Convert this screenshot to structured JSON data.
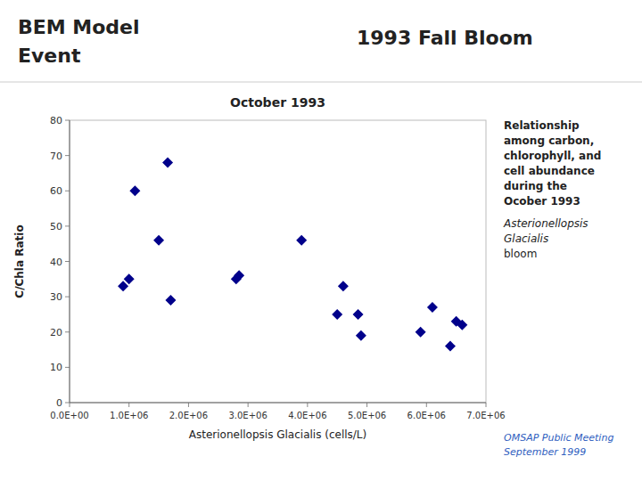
{
  "chart_data": {
    "type": "scatter",
    "title": "October 1993",
    "x_label": "Asterionellopsis Glacialis (cells/L)",
    "y_label": "C/Chla Ratio",
    "annotations": [
      "BEM Model",
      "Event",
      "1993 Fall Bloom",
      "Relationship\namong carbon,\nchlorophyll, and\ncell abundance\nduring the\nOcober 1993",
      "Asterionellopsis\nGlacialis",
      "bloom",
      "OMSAP Public Meeting\nSeptember 1999"
    ],
    "x": [
      900000,
      1000000,
      1100000,
      1500000,
      1650000,
      1700000,
      2800000,
      2850000,
      3900000,
      4500000,
      4600000,
      4850000,
      4900000,
      5900000,
      6100000,
      6400000,
      6500000,
      6600000
    ],
    "values": [
      33,
      35,
      60,
      46,
      68,
      29,
      35,
      36,
      46,
      25,
      33,
      25,
      19,
      20,
      27,
      16,
      23,
      22
    ],
    "color": "#00008B",
    "marker": "diamond",
    "xlim": [
      0,
      7000000
    ],
    "ylim": [
      0,
      80
    ],
    "xticks": [
      {
        "value": 0,
        "label": "0.0E+00"
      },
      {
        "value": 1000000,
        "label": "1.0E+06"
      },
      {
        "value": 2000000,
        "label": "2.0E+06"
      },
      {
        "value": 3000000,
        "label": "3.0E+06"
      },
      {
        "value": 4000000,
        "label": "4.0E+06"
      },
      {
        "value": 5000000,
        "label": "5.0E+06"
      },
      {
        "value": 6000000,
        "label": "6.0E+06"
      },
      {
        "value": 7000000,
        "label": "7.0E+06"
      }
    ],
    "yticks": [
      0,
      10,
      20,
      30,
      40,
      50,
      60,
      70,
      80
    ],
    "grid": false
  }
}
